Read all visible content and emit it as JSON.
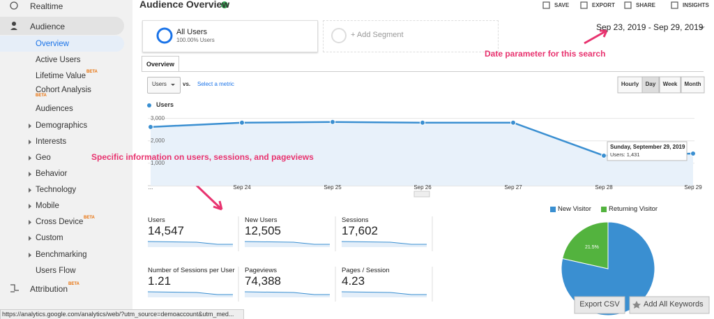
{
  "sidebar": {
    "items": [
      {
        "label": "Realtime"
      },
      {
        "label": "Audience"
      },
      {
        "label": "Overview"
      },
      {
        "label": "Active Users"
      },
      {
        "label": "Lifetime Value",
        "badge": "BETA"
      },
      {
        "label": "Cohort Analysis",
        "badge": "BETA"
      },
      {
        "label": "Audiences"
      },
      {
        "label": "Demographics"
      },
      {
        "label": "Interests"
      },
      {
        "label": "Geo"
      },
      {
        "label": "Behavior"
      },
      {
        "label": "Technology"
      },
      {
        "label": "Mobile"
      },
      {
        "label": "Cross Device",
        "badge": "BETA"
      },
      {
        "label": "Custom"
      },
      {
        "label": "Benchmarking"
      },
      {
        "label": "Users Flow"
      },
      {
        "label": "Attribution",
        "badge": "BETA"
      }
    ]
  },
  "header": {
    "title": "Audience Overview",
    "actions": [
      "SAVE",
      "EXPORT",
      "SHARE",
      "INSIGHTS"
    ]
  },
  "segments": [
    {
      "name": "All Users",
      "detail": "100.00% Users"
    },
    {
      "name": "+ Add Segment"
    }
  ],
  "date_range": "Sep 23, 2019 - Sep 29, 2019",
  "annotations": [
    "Date parameter for this search",
    "Specific information on users, sessions, and pageviews"
  ],
  "tab": "Overview",
  "metric_selector": {
    "metric": "Users",
    "vs": "vs.",
    "link": "Select a metric"
  },
  "granularity": [
    "Hourly",
    "Day",
    "Week",
    "Month"
  ],
  "line_chart": {
    "type": "line",
    "series_name": "Users",
    "color": "#3a8fd1",
    "x": [
      "...",
      "Sep 24",
      "Sep 25",
      "Sep 26",
      "Sep 27",
      "Sep 28",
      "Sep 29"
    ],
    "values": [
      2620,
      2810,
      2840,
      2810,
      2810,
      1340,
      1431
    ],
    "ylim": [
      0,
      3300
    ],
    "yticks": [
      {
        "value": 1000,
        "label": "1,000"
      },
      {
        "value": 2000,
        "label": "2,000"
      },
      {
        "value": 3000,
        "label": "3,000"
      }
    ],
    "tooltip": {
      "title": "Sunday, September 29, 2019",
      "label": "Users: 1,431"
    }
  },
  "metrics": [
    {
      "label": "Users",
      "value": "14,547"
    },
    {
      "label": "New Users",
      "value": "12,505"
    },
    {
      "label": "Sessions",
      "value": "17,602"
    },
    {
      "label": "Number of Sessions per User",
      "value": "1.21"
    },
    {
      "label": "Pageviews",
      "value": "74,388"
    },
    {
      "label": "Pages / Session",
      "value": "4.23"
    }
  ],
  "pie_chart": {
    "type": "pie",
    "categories": [
      "New Visitor",
      "Returning Visitor"
    ],
    "values": [
      78.5,
      21.5
    ],
    "value_labels": [
      null,
      "21.5%"
    ],
    "colors": [
      "#3a8fd1",
      "#53b33e"
    ]
  },
  "footer": {
    "status_url": "https://analytics.google.com/analytics/web/?utm_source=demoaccount&utm_med...",
    "buttons": [
      "Export CSV",
      "Add All Keywords"
    ]
  }
}
